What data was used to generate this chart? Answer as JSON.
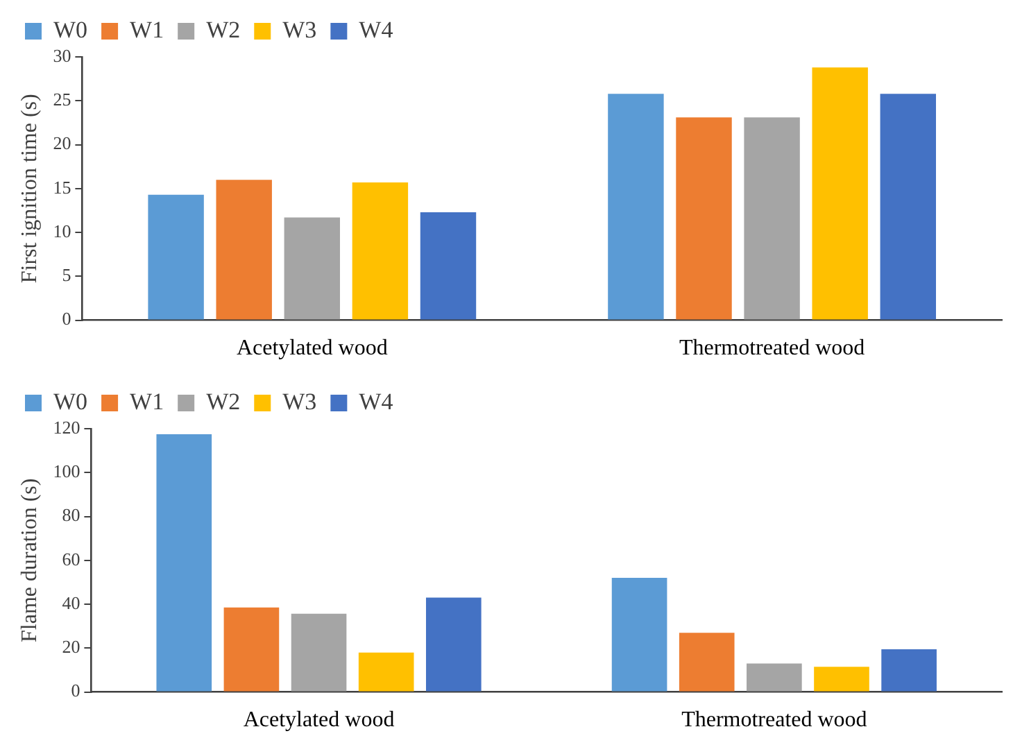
{
  "chart_data": [
    {
      "type": "bar",
      "ylabel": "First ignition time (s)",
      "categories": [
        "Acetylated wood",
        "Thermotreated wood"
      ],
      "series": [
        {
          "name": "W0",
          "color": "#5b9bd5",
          "values": [
            14.3,
            25.8
          ]
        },
        {
          "name": "W1",
          "color": "#ed7d31",
          "values": [
            16.0,
            23.1
          ]
        },
        {
          "name": "W2",
          "color": "#a5a5a5",
          "values": [
            11.7,
            23.1
          ]
        },
        {
          "name": "W3",
          "color": "#ffc000",
          "values": [
            15.7,
            28.8
          ]
        },
        {
          "name": "W4",
          "color": "#4472c4",
          "values": [
            12.3,
            25.8
          ]
        }
      ],
      "ylim": [
        0,
        30
      ],
      "yticks": [
        0,
        5,
        10,
        15,
        20,
        25,
        30
      ],
      "grid": false,
      "legend": "top left"
    },
    {
      "type": "bar",
      "ylabel": "Flame duration (s)",
      "categories": [
        "Acetylated wood",
        "Thermotreated wood"
      ],
      "series": [
        {
          "name": "W0",
          "color": "#5b9bd5",
          "values": [
            117.5,
            52
          ]
        },
        {
          "name": "W1",
          "color": "#ed7d31",
          "values": [
            38.5,
            27
          ]
        },
        {
          "name": "W2",
          "color": "#a5a5a5",
          "values": [
            35.7,
            13
          ]
        },
        {
          "name": "W3",
          "color": "#ffc000",
          "values": [
            18,
            11.5
          ]
        },
        {
          "name": "W4",
          "color": "#4472c4",
          "values": [
            43,
            19.5
          ]
        }
      ],
      "ylim": [
        0,
        120
      ],
      "yticks": [
        0,
        20,
        40,
        60,
        80,
        100,
        120
      ],
      "grid": false,
      "legend": "top left"
    }
  ]
}
